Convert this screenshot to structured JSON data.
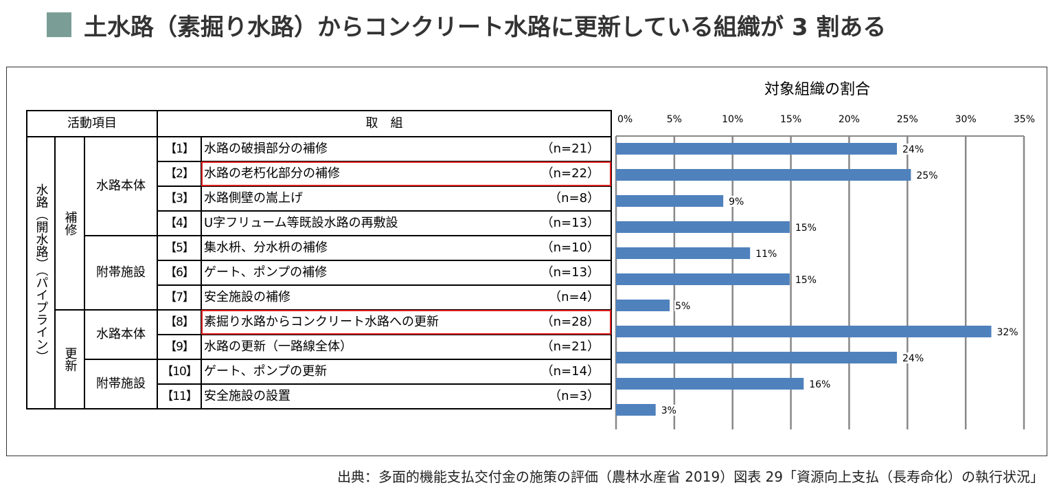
{
  "title": "土水路（素掘り水路）からコンクリート水路に更新している組織が 3 割ある",
  "accent_color": "#7a9e96",
  "table": {
    "header_activity": "活動項目",
    "header_action": "取　組",
    "col1": "水路（開水路）（パイプライン）",
    "groups": [
      "補修",
      "更新"
    ],
    "subgroups": [
      "水路本体",
      "附帯施設",
      "水路本体",
      "附帯施設"
    ],
    "rows": [
      {
        "num": "【1】",
        "label": "水路の破損部分の補修",
        "n": "（n=21）"
      },
      {
        "num": "【2】",
        "label": "水路の老朽化部分の補修",
        "n": "（n=22）",
        "highlight": true
      },
      {
        "num": "【3】",
        "label": "水路側壁の嵩上げ",
        "n": "（n=8）"
      },
      {
        "num": "【4】",
        "label": "U字フリューム等既設水路の再敷設",
        "n": "（n=13）"
      },
      {
        "num": "【5】",
        "label": "集水枡、分水枡の補修",
        "n": "（n=10）"
      },
      {
        "num": "【6】",
        "label": "ゲート、ポンプの補修",
        "n": "（n=13）"
      },
      {
        "num": "【7】",
        "label": "安全施設の補修",
        "n": "（n=4）"
      },
      {
        "num": "【8】",
        "label": "素掘り水路からコンクリート水路への更新",
        "n": "（n=28）",
        "highlight": true
      },
      {
        "num": "【9】",
        "label": "水路の更新（一路線全体）",
        "n": "（n=21）"
      },
      {
        "num": "【10】",
        "label": "ゲート、ポンプの更新",
        "n": "（n=14）"
      },
      {
        "num": "【11】",
        "label": "安全施設の設置",
        "n": "（n=3）"
      }
    ]
  },
  "chart_data": {
    "type": "bar",
    "orientation": "horizontal",
    "title": "対象組織の割合",
    "categories": [
      "【1】",
      "【2】",
      "【3】",
      "【4】",
      "【5】",
      "【6】",
      "【7】",
      "【8】",
      "【9】",
      "【10】",
      "【11】"
    ],
    "values": [
      24.1,
      25.3,
      9.2,
      14.9,
      11.5,
      14.9,
      4.6,
      32.2,
      24.1,
      16.1,
      3.4
    ],
    "data_labels": [
      "24%",
      "25%",
      "9%",
      "15%",
      "11%",
      "15%",
      "5%",
      "32%",
      "24%",
      "16%",
      "3%"
    ],
    "xlim": [
      0,
      35
    ],
    "xticks": [
      "0%",
      "5%",
      "10%",
      "15%",
      "20%",
      "25%",
      "30%",
      "35%"
    ],
    "grid": true,
    "bar_color": "#4f81bd",
    "highlight_color": "#e02020"
  },
  "source": "出典：多面的機能支払交付金の施策の評価（農林水産省 2019）図表 29「資源向上支払（長寿命化）の執行状況」"
}
